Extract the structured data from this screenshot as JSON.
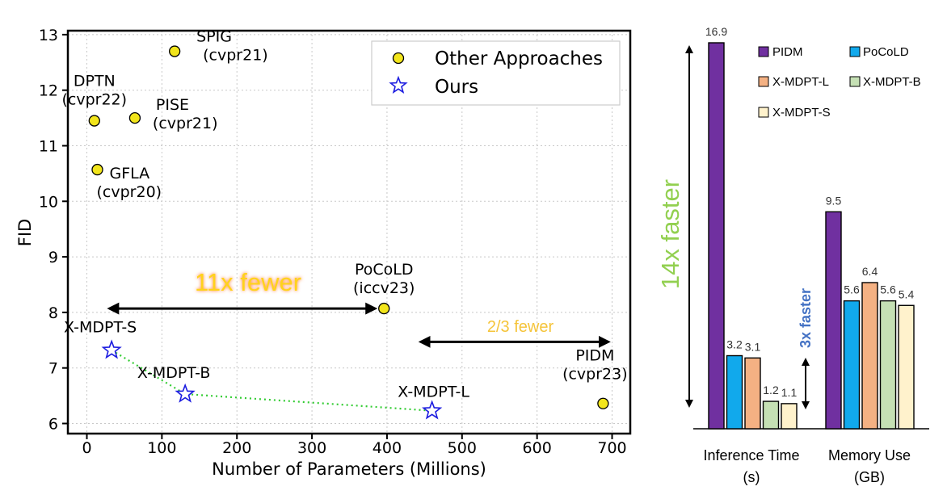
{
  "chart_data": [
    {
      "type": "scatter",
      "xlabel": "Number of Parameters (Millions)",
      "ylabel": "FID",
      "xlim": [
        -20,
        720
      ],
      "ylim": [
        5.85,
        13.05
      ],
      "xticks": [
        "0",
        "100",
        "200",
        "300",
        "400",
        "500",
        "600",
        "700"
      ],
      "yticks": [
        "6",
        "7",
        "8",
        "9",
        "10",
        "11",
        "12",
        "13"
      ],
      "grid": true,
      "legend_position": "top-right",
      "legend": [
        "Other Approaches",
        "Ours"
      ],
      "series": [
        {
          "name": "Other Approaches",
          "marker": "circle",
          "color": "#f2e51b",
          "points": [
            {
              "x": 117,
              "y": 12.7,
              "label_line1": "SPIG",
              "label_line2": "(cvpr21)"
            },
            {
              "x": 10,
              "y": 11.45,
              "label_line1": "DPTN",
              "label_line2": "(cvpr22)"
            },
            {
              "x": 64,
              "y": 11.5,
              "label_line1": "PISE",
              "label_line2": "(cvpr21)"
            },
            {
              "x": 14,
              "y": 10.57,
              "label_line1": "GFLA",
              "label_line2": "(cvpr20)"
            },
            {
              "x": 396,
              "y": 8.07,
              "label_line1": "PoCoLD",
              "label_line2": "(iccv23)"
            },
            {
              "x": 688,
              "y": 6.36,
              "label_line1": "PIDM",
              "label_line2": "(cvpr23)"
            }
          ]
        },
        {
          "name": "Ours",
          "marker": "star",
          "color": "#1c1ce0",
          "points": [
            {
              "x": 33,
              "y": 7.32,
              "label_line1": "X-MDPT-S"
            },
            {
              "x": 131,
              "y": 6.53,
              "label_line1": "X-MDPT-B"
            },
            {
              "x": 460,
              "y": 6.23,
              "label_line1": "X-MDPT-L"
            }
          ]
        }
      ],
      "annotations": [
        {
          "text": "11x fewer",
          "color": "#ffd21a",
          "from_x": 30,
          "to_x": 396,
          "y": 8.07
        },
        {
          "text": "2/3 fewer",
          "color": "#f5c43a",
          "from_x": 445,
          "to_x": 695,
          "y": 7.47
        }
      ]
    },
    {
      "type": "bar",
      "ylim": [
        0,
        16.9
      ],
      "categories": [
        "Inference Time\n(s)",
        "Memory Use\n(GB)"
      ],
      "category_lines": [
        [
          "Inference Time",
          "(s)"
        ],
        [
          "Memory Use",
          "(GB)"
        ]
      ],
      "series": [
        {
          "name": "PIDM",
          "color": "#7030a0",
          "values": [
            16.9,
            9.5
          ]
        },
        {
          "name": "PoCoLD",
          "color": "#11a9ec",
          "values": [
            3.2,
            5.6
          ]
        },
        {
          "name": "X-MDPT-L",
          "color": "#f4b183",
          "values": [
            3.1,
            6.4
          ]
        },
        {
          "name": "X-MDPT-B",
          "color": "#c5e0b4",
          "values": [
            1.2,
            5.6
          ]
        },
        {
          "name": "X-MDPT-S",
          "color": "#fff2cc",
          "values": [
            1.1,
            5.4
          ]
        }
      ],
      "value_labels": [
        [
          "16.9",
          "3.2",
          "3.1",
          "1.2",
          "1.1"
        ],
        [
          "9.5",
          "5.6",
          "6.4",
          "5.6",
          "5.4"
        ]
      ],
      "annotations": [
        {
          "text": "14x faster",
          "color": "#92d050"
        },
        {
          "text": "3x faster",
          "color": "#4472c4"
        }
      ]
    }
  ]
}
